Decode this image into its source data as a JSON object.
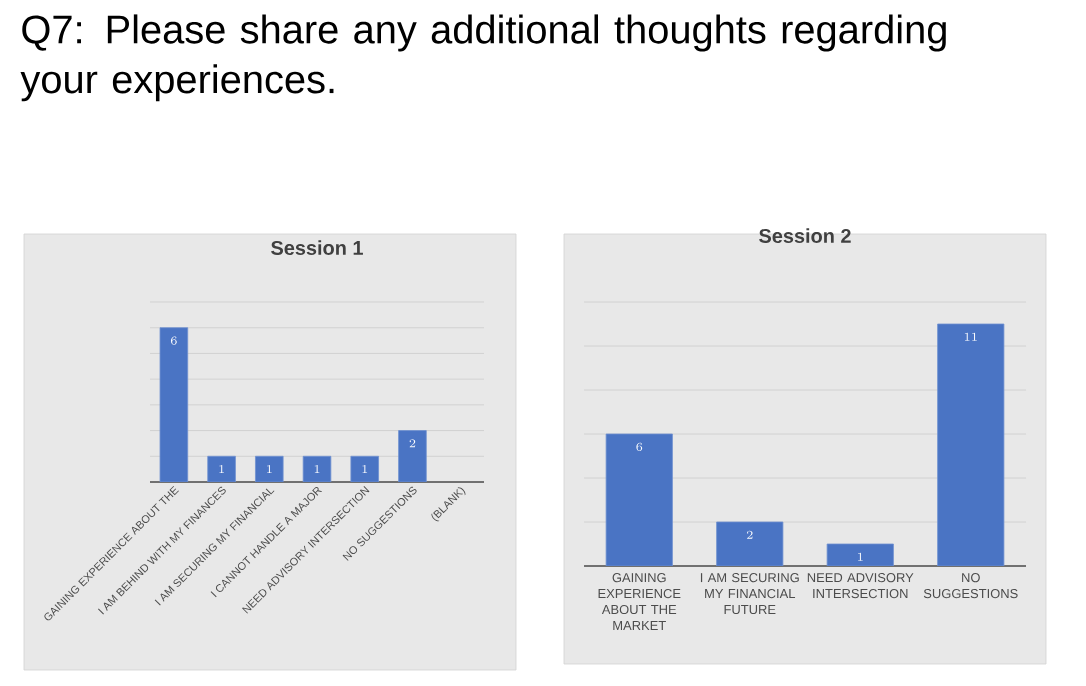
{
  "chart_data": [
    {
      "type": "bar",
      "title": "Session 1",
      "annotations": [
        "Q7: Please share any additional thoughts regarding your experiences."
      ],
      "categories": [
        "GAINING EXPERIENCE ABOUT THE",
        "I AM BEHIND WITH MY FINANCES",
        "I AM SECURING MY FINANCIAL",
        "I CANNOT HANDLE A MAJOR",
        "NEED ADVISORY INTERSECTION",
        "NO SUGGESTIONS",
        "(BLANK)"
      ],
      "values": [
        6,
        1,
        1,
        1,
        1,
        2,
        null
      ],
      "color": "#4a74c4",
      "ylim": [
        0,
        7
      ],
      "yticks": [
        {
          "value": 0,
          "label": null
        },
        {
          "value": 1,
          "label": null
        },
        {
          "value": 2,
          "label": null
        },
        {
          "value": 3,
          "label": null
        },
        {
          "value": 4,
          "label": null
        },
        {
          "value": 5,
          "label": null
        },
        {
          "value": 6,
          "label": null
        },
        {
          "value": 7,
          "label": null
        }
      ],
      "grid": "y",
      "tick_labels": "x",
      "data_labels": true
    },
    {
      "type": "bar",
      "title": "Session 2",
      "categories": [
        "GAINING EXPERIENCE ABOUT THE MARKET",
        "I AM SECURING MY FINANCIAL FUTURE",
        "NEED ADVISORY INTERSECTION",
        "NO SUGGESTIONS"
      ],
      "values": [
        6,
        2,
        1,
        11
      ],
      "color": "#4a74c4",
      "ylim": [
        0,
        12
      ],
      "yticks": [
        {
          "value": 0,
          "label": null
        },
        {
          "value": 2,
          "label": null
        },
        {
          "value": 4,
          "label": null
        },
        {
          "value": 6,
          "label": null
        },
        {
          "value": 8,
          "label": null
        },
        {
          "value": 10,
          "label": null
        },
        {
          "value": 12,
          "label": null
        }
      ],
      "grid": "y",
      "tick_labels": "x",
      "data_labels": true
    }
  ]
}
